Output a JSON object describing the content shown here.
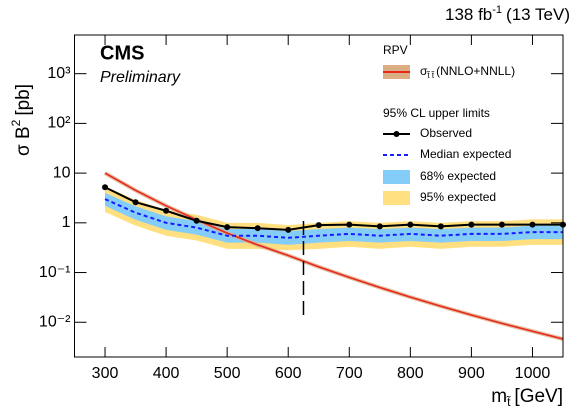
{
  "chart_data": {
    "type": "line",
    "lumi": {
      "main": "138 fb",
      "sup": "-1",
      "rest": "(13 TeV)"
    },
    "annotations": {
      "experiment": "CMS",
      "status": "Preliminary"
    },
    "ylabel": {
      "main": "σ B",
      "sup": "2",
      "unit": "[pb]"
    },
    "xlabel": {
      "main": "m",
      "sub": "t̃",
      "unit": "[GeV]"
    },
    "legend": "upper right",
    "legend_title": "RPV",
    "legend_subtitle": "95% CL upper limits",
    "log_y": true,
    "xlim": [
      250,
      1050
    ],
    "xticks": [
      300,
      400,
      500,
      600,
      700,
      800,
      900,
      1000
    ],
    "ylim": [
      0.002,
      6000
    ],
    "yticks": [
      {
        "value": 0.01,
        "label": "10⁻²"
      },
      {
        "value": 0.1,
        "label": "10⁻¹"
      },
      1,
      10,
      {
        "value": 100,
        "label": "10²"
      },
      {
        "value": 1000,
        "label": "10³"
      }
    ],
    "x": [
      300,
      350,
      400,
      450,
      500,
      550,
      600,
      650,
      700,
      750,
      800,
      850,
      900,
      950,
      1000,
      1050
    ],
    "series": [
      {
        "name": "(NNLO+NNLL)",
        "symbol": "σ",
        "symbol_sub": "t̃ t̃",
        "style": "theory",
        "color": "#e8281e",
        "band_color": "#dcae84",
        "values": [
          10,
          4.5,
          2.2,
          1.15,
          0.62,
          0.36,
          0.22,
          0.13,
          0.08,
          0.05,
          0.032,
          0.021,
          0.014,
          0.0095,
          0.0066,
          0.0046
        ]
      },
      {
        "name": "Observed",
        "style": "markers",
        "color": "#000000",
        "values": [
          5.2,
          2.6,
          1.75,
          1.1,
          0.82,
          0.78,
          0.72,
          0.9,
          0.92,
          0.85,
          0.92,
          0.85,
          0.92,
          0.92,
          0.92,
          0.92
        ]
      },
      {
        "name": "Median expected",
        "style": "dashed",
        "color": "#1a1aff",
        "values": [
          3.0,
          1.6,
          1.0,
          0.8,
          0.55,
          0.55,
          0.5,
          0.55,
          0.6,
          0.55,
          0.6,
          0.55,
          0.6,
          0.6,
          0.65,
          0.65
        ]
      },
      {
        "name": "68% expected",
        "style": "band",
        "color": "#85cdf9",
        "lower": [
          2.2,
          1.15,
          0.72,
          0.58,
          0.4,
          0.4,
          0.36,
          0.4,
          0.43,
          0.4,
          0.43,
          0.4,
          0.43,
          0.43,
          0.47,
          0.47
        ],
        "upper": [
          4.0,
          2.15,
          1.35,
          1.08,
          0.75,
          0.75,
          0.68,
          0.75,
          0.8,
          0.75,
          0.8,
          0.75,
          0.8,
          0.8,
          0.88,
          0.88
        ]
      },
      {
        "name": "95% expected",
        "style": "band",
        "color": "#ffdf7f",
        "lower": [
          1.65,
          0.88,
          0.55,
          0.44,
          0.3,
          0.3,
          0.28,
          0.3,
          0.33,
          0.3,
          0.33,
          0.3,
          0.33,
          0.33,
          0.36,
          0.36
        ],
        "upper": [
          5.4,
          2.9,
          1.8,
          1.45,
          1.0,
          1.0,
          0.9,
          1.0,
          1.08,
          1.0,
          1.08,
          1.0,
          1.08,
          1.08,
          1.17,
          1.17
        ]
      }
    ],
    "vline": {
      "x": 625,
      "ylim": [
        0.014,
        1.2
      ],
      "color": "#000000"
    }
  }
}
